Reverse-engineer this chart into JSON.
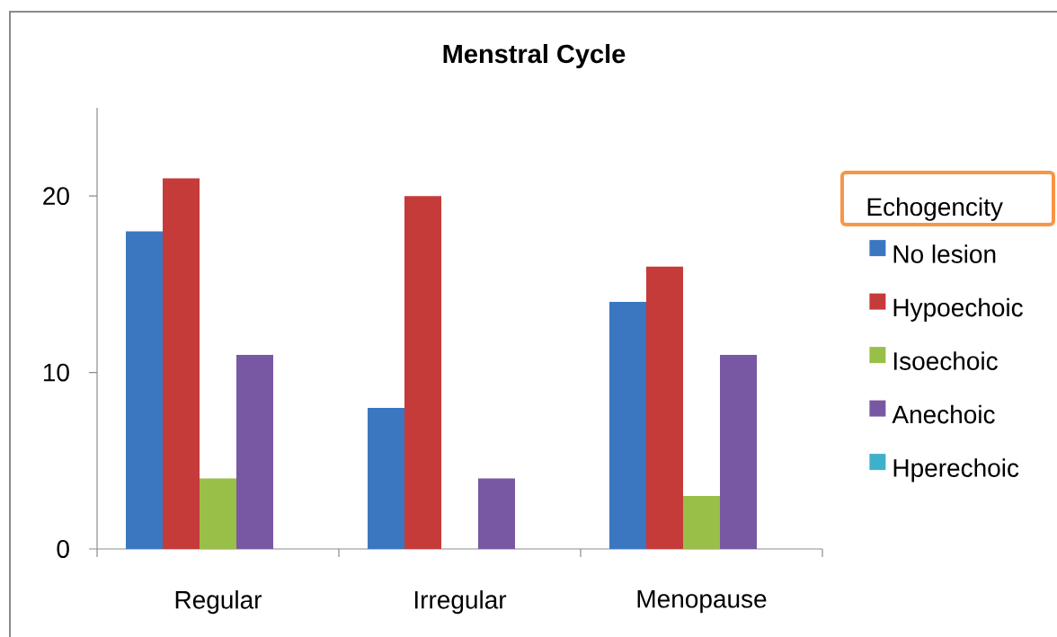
{
  "chart_data": {
    "type": "bar",
    "title": "Menstral Cycle",
    "legend_title": "Echogencity",
    "categories": [
      "Regular",
      "Irregular",
      "Menopause"
    ],
    "series": [
      {
        "name": "No lesion",
        "color": "#3b77c1",
        "values": [
          18,
          8,
          14
        ]
      },
      {
        "name": "Hypoechoic",
        "color": "#c43b3a",
        "values": [
          21,
          20,
          16
        ]
      },
      {
        "name": "Isoechoic",
        "color": "#99bf48",
        "values": [
          4,
          0,
          3
        ]
      },
      {
        "name": "Anechoic",
        "color": "#7858a2",
        "values": [
          11,
          4,
          11
        ]
      },
      {
        "name": "Hperechoic",
        "color": "#3fb0cc",
        "values": [
          0,
          0,
          0
        ]
      }
    ],
    "ylim": [
      0,
      25
    ],
    "yticks": [
      0,
      10,
      20
    ],
    "legend": "right"
  }
}
